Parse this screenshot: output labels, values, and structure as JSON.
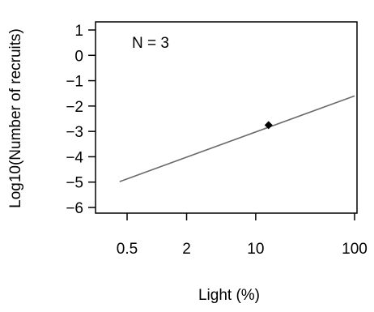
{
  "chart_data": {
    "type": "scatter",
    "xlabel": "Light (%)",
    "ylabel": "Log10(Number of recruits)",
    "x_scale": "log",
    "x_ticks": [
      0.5,
      2,
      10,
      100
    ],
    "x_tick_labels": [
      "0.5",
      "2",
      "10",
      "100"
    ],
    "y_ticks": [
      1,
      0,
      -1,
      -2,
      -3,
      -4,
      -5,
      -6
    ],
    "y_tick_labels": [
      "1",
      "0",
      "−1",
      "−2",
      "−3",
      "−4",
      "−5",
      "−6"
    ],
    "xlim": [
      0.3,
      120
    ],
    "ylim": [
      -6.3,
      1.3
    ],
    "annotation": "N = 3",
    "points": [
      {
        "x": 13.5,
        "y": -2.75
      }
    ],
    "fit_line": {
      "x": [
        0.42,
        100
      ],
      "y": [
        -4.98,
        -1.6
      ]
    },
    "colors": {
      "line": "#6b6b6b",
      "point": "#000000",
      "frame": "#000000"
    }
  }
}
